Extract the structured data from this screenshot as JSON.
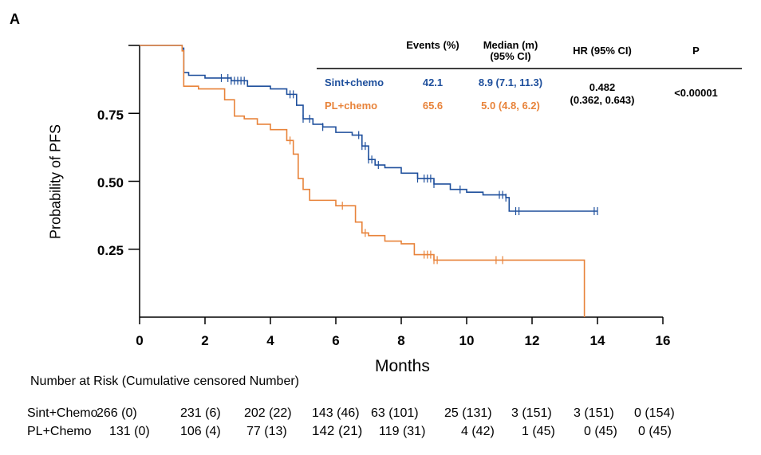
{
  "panel_label": "A",
  "colors": {
    "sint": "#1e4f9c",
    "pl": "#e8833a"
  },
  "chart_data": {
    "type": "line",
    "title": "",
    "xlabel": "Months",
    "ylabel": "Probability  of PFS",
    "xlim": [
      0,
      16
    ],
    "ylim": [
      0,
      1.0
    ],
    "xticks": [
      "0",
      "2",
      "4",
      "6",
      "8",
      "10",
      "12",
      "14",
      "16"
    ],
    "yticks": [
      "0.25",
      "0.50",
      "0.75"
    ],
    "ytick_values": [
      0.25,
      0.5,
      0.75
    ],
    "series": [
      {
        "name": "Sint+chemo",
        "x": [
          0,
          1.3,
          1.35,
          1.5,
          2.0,
          2.8,
          3.3,
          4.0,
          4.5,
          4.8,
          5.0,
          5.3,
          5.6,
          6.0,
          6.5,
          6.8,
          7.0,
          7.2,
          7.5,
          8.0,
          8.5,
          9.0,
          9.5,
          10.0,
          10.5,
          11.2,
          11.3,
          14.0
        ],
        "y": [
          1.0,
          0.99,
          0.9,
          0.89,
          0.88,
          0.87,
          0.85,
          0.84,
          0.82,
          0.78,
          0.73,
          0.71,
          0.7,
          0.68,
          0.67,
          0.63,
          0.58,
          0.56,
          0.55,
          0.53,
          0.51,
          0.49,
          0.47,
          0.46,
          0.45,
          0.44,
          0.39,
          0.39
        ],
        "censor_x": [
          2.5,
          2.7,
          2.8,
          2.9,
          3.0,
          3.1,
          3.2,
          4.6,
          4.7,
          5.0,
          5.2,
          5.6,
          6.7,
          6.8,
          6.9,
          7.0,
          7.1,
          7.3,
          8.5,
          8.7,
          8.8,
          8.9,
          9.0,
          9.8,
          11.0,
          11.1,
          11.2,
          11.5,
          11.6,
          13.9,
          14.0
        ]
      },
      {
        "name": "PL+chemo",
        "x": [
          0,
          1.3,
          1.35,
          1.8,
          2.6,
          2.9,
          3.2,
          3.6,
          4.0,
          4.5,
          4.7,
          4.85,
          5.0,
          5.2,
          6.0,
          6.6,
          6.8,
          7.0,
          7.5,
          8.0,
          8.4,
          9.0,
          13.6,
          13.6
        ],
        "y": [
          1.0,
          0.98,
          0.85,
          0.84,
          0.8,
          0.74,
          0.73,
          0.71,
          0.69,
          0.65,
          0.6,
          0.51,
          0.47,
          0.43,
          0.41,
          0.35,
          0.31,
          0.3,
          0.28,
          0.27,
          0.23,
          0.21,
          0.21,
          0.0
        ],
        "censor_x": [
          4.6,
          6.2,
          6.9,
          8.7,
          8.8,
          8.9,
          9.0,
          9.1,
          10.9,
          11.1
        ]
      }
    ],
    "legend_table": {
      "headers": {
        "events": "Events (%)",
        "median": "Median (m) (95% CI)",
        "hr": "HR (95% CI)",
        "p": "P"
      },
      "rows": [
        {
          "label": "Sint+chemo",
          "events": "42.1",
          "median": "8.9 (7.1, 11.3)"
        },
        {
          "label": "PL+chemo",
          "events": "65.6",
          "median": "5.0 (4.8, 6.2)"
        }
      ],
      "hr_line1": "0.482",
      "hr_line2": "(0.362, 0.643)",
      "p": "<0.00001"
    }
  },
  "risk_table": {
    "title": "Number  at Risk (Cumulative censored Number)",
    "rows": [
      {
        "label": "Sint+Chemo",
        "values": [
          "266 (0)",
          "231  (6)",
          "202 (22)",
          "143 (46)",
          "63 (101)",
          "25 (131)",
          "3 (151)",
          "3 (151)",
          "0 (154)"
        ]
      },
      {
        "label": "PL+Chemo",
        "values": [
          "131 (0)",
          "106 (4)",
          "77 (13)",
          "142 (21)",
          "119 (31)",
          "4 (42)",
          "1 (45)",
          "0 (45)",
          "0 (45)"
        ]
      }
    ]
  }
}
